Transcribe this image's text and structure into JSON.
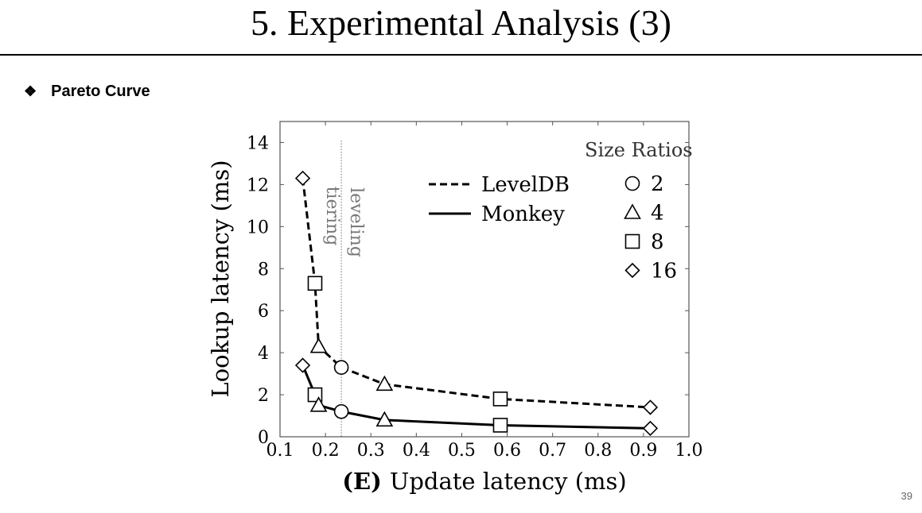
{
  "slide": {
    "title": "5. Experimental Analysis (3)",
    "bullet_text": "Pareto Curve",
    "page_number": "39"
  },
  "chart_data": {
    "type": "line",
    "xlabel_bold": "(E)",
    "xlabel": "Update latency (ms)",
    "ylabel": "Lookup latency (ms)",
    "xlim": [
      0.1,
      1.0
    ],
    "ylim": [
      0,
      15
    ],
    "xticks": [
      "0.1",
      "0.2",
      "0.3",
      "0.4",
      "0.5",
      "0.6",
      "0.7",
      "0.8",
      "0.9",
      "1.0"
    ],
    "yticks": [
      "0",
      "2",
      "4",
      "6",
      "8",
      "10",
      "12",
      "14"
    ],
    "legend_placement": "top-center",
    "annotations": {
      "tiering": "tiering",
      "leveling": "leveling",
      "divider_x": 0.235
    },
    "size_ratios_title": "Size Ratios",
    "size_ratios": [
      {
        "marker": "circle",
        "label": "2"
      },
      {
        "marker": "triangle",
        "label": "4"
      },
      {
        "marker": "square",
        "label": "8"
      },
      {
        "marker": "diamond",
        "label": "16"
      }
    ],
    "series": [
      {
        "name": "LevelDB",
        "style": "dashed",
        "points": [
          {
            "x": 0.15,
            "y": 12.3,
            "marker": "diamond"
          },
          {
            "x": 0.177,
            "y": 7.3,
            "marker": "square"
          },
          {
            "x": 0.185,
            "y": 4.3,
            "marker": "triangle"
          },
          {
            "x": 0.235,
            "y": 3.3,
            "marker": "circle"
          },
          {
            "x": 0.33,
            "y": 2.5,
            "marker": "triangle"
          },
          {
            "x": 0.585,
            "y": 1.8,
            "marker": "square"
          },
          {
            "x": 0.915,
            "y": 1.4,
            "marker": "diamond"
          }
        ]
      },
      {
        "name": "Monkey",
        "style": "solid",
        "points": [
          {
            "x": 0.15,
            "y": 3.4,
            "marker": "diamond"
          },
          {
            "x": 0.177,
            "y": 2.0,
            "marker": "square"
          },
          {
            "x": 0.185,
            "y": 1.5,
            "marker": "triangle"
          },
          {
            "x": 0.235,
            "y": 1.2,
            "marker": "circle"
          },
          {
            "x": 0.33,
            "y": 0.8,
            "marker": "triangle"
          },
          {
            "x": 0.585,
            "y": 0.55,
            "marker": "square"
          },
          {
            "x": 0.915,
            "y": 0.4,
            "marker": "diamond"
          }
        ]
      }
    ]
  }
}
